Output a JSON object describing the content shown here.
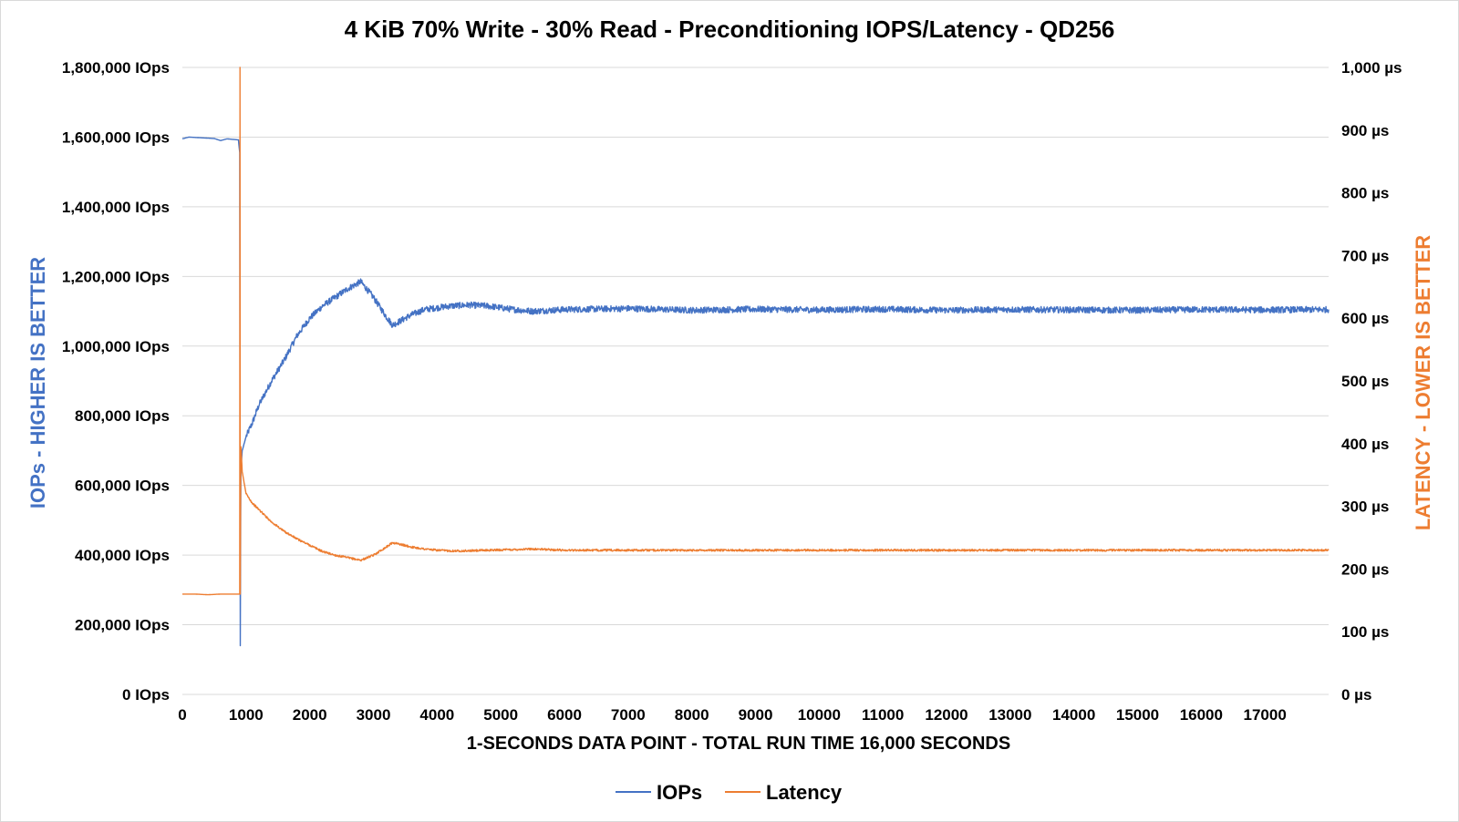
{
  "chart_data": {
    "type": "line",
    "title": "4 KiB 70% Write - 30% Read - Preconditioning IOPS/Latency - QD256",
    "xlabel": "1-SECONDS DATA POINT - TOTAL RUN TIME 16,000 SECONDS",
    "ylabel_left": "IOPs - HIGHER IS BETTER",
    "ylabel_right": "LATENCY - LOWER IS BETTER",
    "xlim": [
      0,
      18000
    ],
    "ylim_left": [
      0,
      1800000
    ],
    "ylim_right": [
      0,
      1000
    ],
    "x_ticks": [
      0,
      1000,
      2000,
      3000,
      4000,
      5000,
      6000,
      7000,
      8000,
      9000,
      10000,
      11000,
      12000,
      13000,
      14000,
      15000,
      16000,
      17000
    ],
    "x_tick_labels": [
      "0",
      "1000",
      "2000",
      "3000",
      "4000",
      "5000",
      "6000",
      "7000",
      "8000",
      "9000",
      "10000",
      "11000",
      "12000",
      "13000",
      "14000",
      "15000",
      "16000",
      "17000"
    ],
    "y_left_ticks": [
      0,
      200000,
      400000,
      600000,
      800000,
      1000000,
      1200000,
      1400000,
      1600000,
      1800000
    ],
    "y_left_tick_labels": [
      "0 IOps",
      "200,000 IOps",
      "400,000 IOps",
      "600,000 IOps",
      "800,000 IOps",
      "1,000,000 IOps",
      "1,200,000 IOps",
      "1,400,000 IOps",
      "1,600,000 IOps",
      "1,800,000 IOps"
    ],
    "y_right_ticks": [
      0,
      100,
      200,
      300,
      400,
      500,
      600,
      700,
      800,
      900,
      1000
    ],
    "y_right_tick_labels": [
      "0 µs",
      "100 µs",
      "200 µs",
      "300 µs",
      "400 µs",
      "500 µs",
      "600 µs",
      "700 µs",
      "800 µs",
      "900 µs",
      "1,000 µs"
    ],
    "gridlines": true,
    "legend_position": "bottom-center",
    "series": [
      {
        "name": "IOPs",
        "axis": "left",
        "color": "#4472C4",
        "x": [
          0,
          100,
          300,
          500,
          600,
          700,
          880,
          900,
          910,
          915,
          920,
          940,
          1000,
          1100,
          1200,
          1400,
          1600,
          1800,
          2000,
          2200,
          2400,
          2600,
          2800,
          3000,
          3200,
          3300,
          3400,
          3600,
          3800,
          4000,
          4200,
          4500,
          4800,
          5200,
          5500,
          6000,
          7000,
          8000,
          9000,
          10000,
          11000,
          12000,
          13000,
          14000,
          15000,
          16000,
          17000,
          18000
        ],
        "y": [
          1595000,
          1600000,
          1598000,
          1596000,
          1590000,
          1595000,
          1592000,
          1555000,
          140000,
          480000,
          650000,
          700000,
          740000,
          780000,
          830000,
          900000,
          960000,
          1030000,
          1080000,
          1115000,
          1140000,
          1165000,
          1185000,
          1140000,
          1085000,
          1060000,
          1070000,
          1090000,
          1105000,
          1110000,
          1115000,
          1118000,
          1115000,
          1105000,
          1100000,
          1105000,
          1108000,
          1103000,
          1106000,
          1104000,
          1106000,
          1103000,
          1105000,
          1104000,
          1103000,
          1105000,
          1104000,
          1105000
        ]
      },
      {
        "name": "Latency",
        "axis": "right",
        "color": "#ED7D31",
        "x": [
          0,
          200,
          400,
          600,
          800,
          900,
          905,
          908,
          910,
          915,
          920,
          940,
          1000,
          1100,
          1200,
          1400,
          1600,
          1800,
          2000,
          2200,
          2400,
          2600,
          2800,
          3000,
          3200,
          3300,
          3400,
          3600,
          3800,
          4000,
          4200,
          4500,
          4800,
          5200,
          5500,
          6000,
          7000,
          8000,
          9000,
          10000,
          11000,
          12000,
          13000,
          14000,
          15000,
          16000,
          17000,
          18000
        ],
        "y": [
          160,
          160,
          159,
          160,
          160,
          160,
          1000,
          180,
          160,
          330,
          395,
          355,
          320,
          305,
          295,
          275,
          260,
          248,
          238,
          228,
          222,
          218,
          214,
          222,
          235,
          242,
          240,
          235,
          232,
          230,
          229,
          229,
          230,
          231,
          232,
          230,
          230,
          230,
          230,
          230,
          230,
          230,
          230,
          230,
          230,
          230,
          230,
          230
        ]
      }
    ]
  }
}
